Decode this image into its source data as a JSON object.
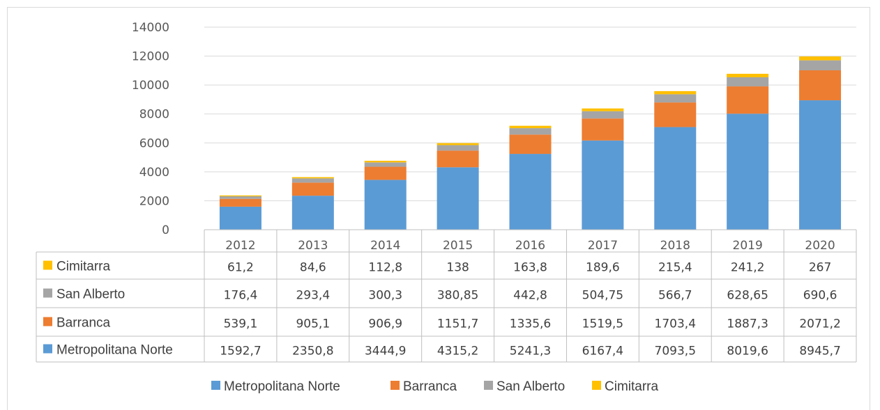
{
  "chart_data": {
    "type": "bar",
    "stacked": true,
    "categories": [
      "2012",
      "2013",
      "2014",
      "2015",
      "2016",
      "2017",
      "2018",
      "2019",
      "2020"
    ],
    "ylim": [
      0,
      14000
    ],
    "yticks": [
      "0",
      "2000",
      "4000",
      "6000",
      "8000",
      "10000",
      "12000",
      "14000"
    ],
    "grid": true,
    "legend_position": "bottom",
    "series": [
      {
        "name": "Metropolitana Norte",
        "color": "#5b9bd5",
        "values": [
          1592.7,
          2350.8,
          3444.9,
          4315.2,
          5241.3,
          6167.4,
          7093.5,
          8019.6,
          8945.7
        ],
        "labels": [
          "1592,7",
          "2350,8",
          "3444,9",
          "4315,2",
          "5241,3",
          "6167,4",
          "7093,5",
          "8019,6",
          "8945,7"
        ]
      },
      {
        "name": "Barranca",
        "color": "#ed7d31",
        "values": [
          539.1,
          905.1,
          906.9,
          1151.7,
          1335.6,
          1519.5,
          1703.4,
          1887.3,
          2071.2
        ],
        "labels": [
          "539,1",
          "905,1",
          "906,9",
          "1151,7",
          "1335,6",
          "1519,5",
          "1703,4",
          "1887,3",
          "2071,2"
        ]
      },
      {
        "name": "San Alberto",
        "color": "#a5a5a5",
        "values": [
          176.4,
          293.4,
          300.3,
          380.85,
          442.8,
          504.75,
          566.7,
          628.65,
          690.6
        ],
        "labels": [
          "176,4",
          "293,4",
          "300,3",
          "380,85",
          "442,8",
          "504,75",
          "566,7",
          "628,65",
          "690,6"
        ]
      },
      {
        "name": "Cimitarra",
        "color": "#ffc000",
        "values": [
          61.2,
          84.6,
          112.8,
          138,
          163.8,
          189.6,
          215.4,
          241.2,
          267
        ],
        "labels": [
          "61,2",
          "84,6",
          "112,8",
          "138",
          "163,8",
          "189,6",
          "215,4",
          "241,2",
          "267"
        ]
      }
    ],
    "table_row_order": [
      "Cimitarra",
      "San Alberto",
      "Barranca",
      "Metropolitana Norte"
    ]
  }
}
